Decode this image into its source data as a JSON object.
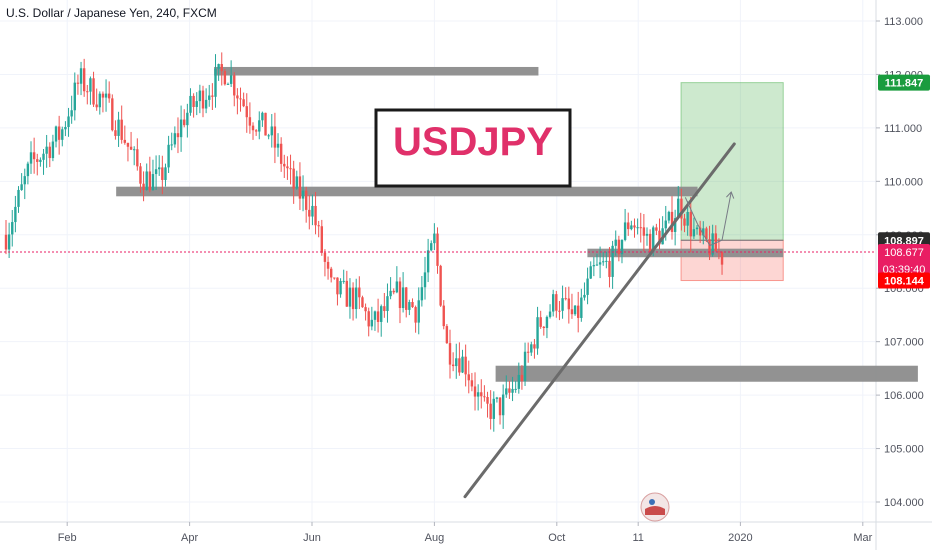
{
  "header": {
    "title": "U.S. Dollar / Japanese Yen, 240, FXCM"
  },
  "annotation": {
    "label": "USDJPY",
    "label_color": "#e0306a"
  },
  "price_badges": {
    "target": {
      "value": "111.847",
      "color": "#1a9c3e"
    },
    "entry": {
      "value": "108.897",
      "color": "#2b2b2b"
    },
    "current": {
      "value": "108.677",
      "color": "#e91e63"
    },
    "countdown": {
      "value": "03:39:40",
      "color": "#e91e63"
    },
    "stop": {
      "value": "108.144",
      "color": "#ff0000"
    }
  },
  "chart_data": {
    "type": "candlestick",
    "title": "U.S. Dollar / Japanese Yen, 240, FXCM",
    "xlabel": "",
    "ylabel": "",
    "ylim": [
      103.75,
      113.3
    ],
    "x_axis": {
      "tick_labels": [
        "Feb",
        "Apr",
        "Jun",
        "Aug",
        "Oct",
        "11",
        "2020",
        "Mar"
      ],
      "tick_months": [
        1.0,
        3.0,
        5.0,
        7.0,
        9.0,
        10.33,
        12.0,
        14.0
      ]
    },
    "y_axis": {
      "tick_labels": [
        "113.000",
        "112.000",
        "111.000",
        "110.000",
        "109.000",
        "108.000",
        "107.000",
        "106.000",
        "105.000",
        "104.000"
      ],
      "tick_values": [
        113,
        112,
        111,
        110,
        109,
        108,
        107,
        106,
        105,
        104
      ]
    },
    "price_path": {
      "months": [
        0.0,
        0.4,
        0.9,
        1.2,
        1.6,
        1.9,
        2.2,
        2.5,
        2.9,
        3.2,
        3.6,
        4.0,
        4.3,
        4.7,
        5.0,
        5.3,
        5.7,
        6.0,
        6.4,
        6.7,
        7.0,
        7.2,
        7.5,
        7.8,
        8.1,
        8.4,
        8.7,
        9.0,
        9.3,
        9.6,
        9.9,
        10.2,
        10.5,
        10.8,
        11.0,
        11.3,
        11.5,
        11.7
      ],
      "prices": [
        109.0,
        110.3,
        110.9,
        111.9,
        111.5,
        110.9,
        110.1,
        110.0,
        111.2,
        111.6,
        112.1,
        111.2,
        110.9,
        109.9,
        109.5,
        108.0,
        107.8,
        107.3,
        107.9,
        107.6,
        108.9,
        106.9,
        106.6,
        105.7,
        105.8,
        106.3,
        107.3,
        107.8,
        107.4,
        108.3,
        108.5,
        109.3,
        108.9,
        109.1,
        109.6,
        108.9,
        108.8,
        108.6
      ]
    },
    "current_price": 108.677,
    "zones": [
      {
        "name": "",
        "from_month": 3.4,
        "to_month": 8.7,
        "low": 111.98,
        "high": 112.14
      },
      {
        "name": "",
        "from_month": 1.8,
        "to_month": 11.3,
        "low": 109.72,
        "high": 109.9
      },
      {
        "name": "",
        "from_month": 9.5,
        "to_month": 12.7,
        "low": 108.58,
        "high": 108.74
      },
      {
        "name": "",
        "from_month": 8.0,
        "to_month": 14.9,
        "low": 106.25,
        "high": 106.55
      }
    ],
    "trendline": {
      "from_month": 7.5,
      "from_price": 104.1,
      "to_month": 11.9,
      "to_price": 110.7
    },
    "position": {
      "type": "long",
      "from_month": 11.03,
      "to_month": 12.7,
      "entry": 108.897,
      "target": 111.847,
      "stop": 108.144
    },
    "projection": {
      "months": [
        11.1,
        11.3,
        11.5,
        11.7,
        11.85
      ],
      "prices": [
        109.7,
        109.2,
        108.8,
        108.9,
        109.8
      ]
    }
  }
}
